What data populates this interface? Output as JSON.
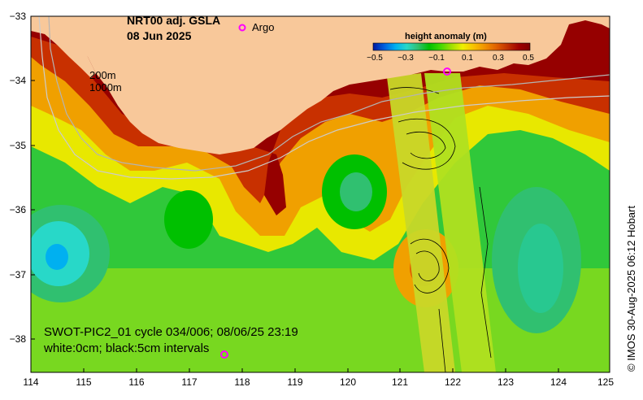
{
  "map": {
    "title_line1": "NRT00 adj. GSLA",
    "title_line2": "08 Jun 2025",
    "legend_marker_label": "Argo",
    "isobath_label_200": "200m",
    "isobath_label_1000": "1000m",
    "footer_line1": "SWOT-PIC2_01 cycle 034/006; 08/06/25 23:19",
    "footer_line2": "white:0cm; black:5cm intervals",
    "timestamp": "© IMOS 30-Aug-2025 06:12 Hobart",
    "lon_ticks": [
      "114",
      "115",
      "116",
      "117",
      "118",
      "119",
      "120",
      "121",
      "122",
      "123",
      "124",
      "125"
    ],
    "lat_ticks": [
      "−33",
      "−34",
      "−35",
      "−36",
      "−37",
      "−38"
    ],
    "lat_values": [
      -33,
      -34,
      -35,
      -36,
      -37,
      -38
    ]
  },
  "colorbar": {
    "title": "height anomaly (m)",
    "ticks": [
      "−0.5",
      "−0.3",
      "−0.1",
      "0.1",
      "0.3",
      "0.5"
    ],
    "range": [
      -0.5,
      0.5
    ],
    "colors": [
      "#0018a0",
      "#0060e0",
      "#00b0f0",
      "#28d8c8",
      "#30c070",
      "#00c000",
      "#40d800",
      "#a0e000",
      "#f0f000",
      "#f8c000",
      "#f09000",
      "#e06000",
      "#c03000",
      "#a00000",
      "#800000"
    ]
  },
  "colors": {
    "land": "#f8c89a",
    "argo_marker": "#ff00ff"
  }
}
